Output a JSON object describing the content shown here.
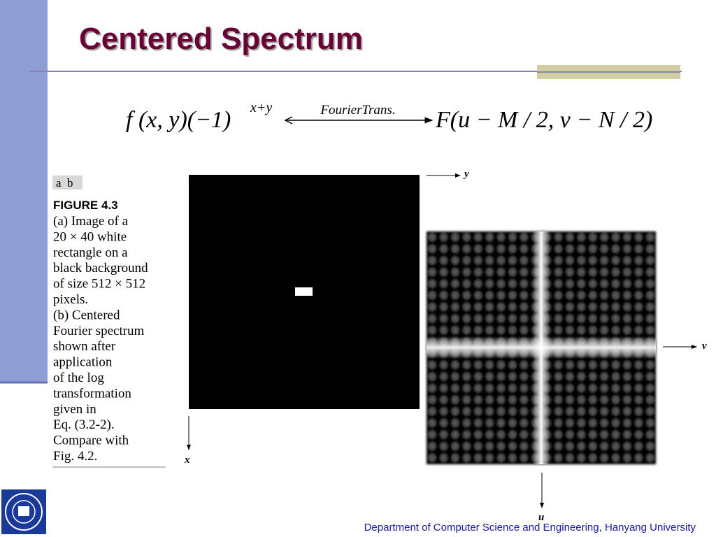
{
  "title": "Centered Spectrum",
  "equation": {
    "left": "f (x, y)(−1)",
    "exponent": "x+y",
    "arrow_label": "FourierTrans.",
    "right": "F(u − M / 2, v − N / 2)"
  },
  "figure": {
    "panels": "a  b",
    "label": "FIGURE 4.3",
    "caption_lines": [
      "(a) Image of a",
      "20 × 40 white",
      "rectangle on a",
      "black background",
      "of size 512 × 512",
      "pixels.",
      "(b) Centered",
      "Fourier spectrum",
      "shown after",
      "application",
      "of the log",
      "transformation",
      "given in",
      "Eq. (3.2-2).",
      "Compare with",
      "Fig. 4.2."
    ],
    "axes": {
      "image_x": "x",
      "image_y": "y",
      "spectrum_u": "u",
      "spectrum_v": "v"
    }
  },
  "footer": "Department of Computer Science and Engineering, Hanyang University"
}
